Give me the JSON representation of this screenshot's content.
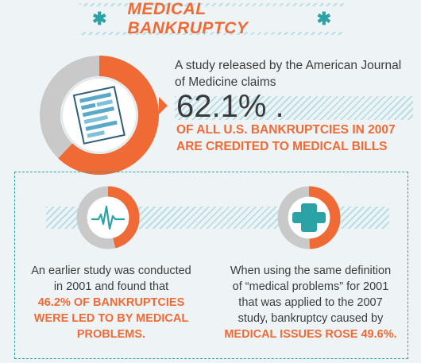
{
  "header": {
    "title": "MEDICAL BANKRUPTCY",
    "left_icon": "asterisk-icon",
    "right_icon": "asterisk-icon"
  },
  "main_stat": {
    "intro": "A study released by the American Journal of Medicine claims",
    "percent": "62.1% .",
    "headline_line1": "OF ALL U.S. BANKRUPTCIES IN 2007",
    "headline_line2": "ARE CREDITED TO MEDICAL BILLS",
    "donut_fraction": 0.621,
    "icon": "document-icon"
  },
  "left_card": {
    "icon": "heartbeat-icon",
    "donut_fraction": 0.462,
    "text_line1": "An earlier study was conducted",
    "text_line2": "in 2001 and found that",
    "highlight_line1": "46.2% OF BANKRUPTCIES",
    "highlight_line2": "WERE LED TO BY MEDICAL",
    "highlight_line3": "PROBLEMS."
  },
  "right_card": {
    "icon": "medical-cross-icon",
    "donut_fraction": 0.496,
    "text_line1": "When using the same definition",
    "text_line2": "of “medical problems” for 2001",
    "text_line3": "that was applied to the 2007",
    "text_line4": "study, bankruptcy caused by",
    "highlight": "MEDICAL ISSUES ROSE 49.6%."
  },
  "colors": {
    "accent": "#ef6a34",
    "teal": "#2ba3a6",
    "gray": "#c9c9c9",
    "background": "#eef4f6"
  }
}
